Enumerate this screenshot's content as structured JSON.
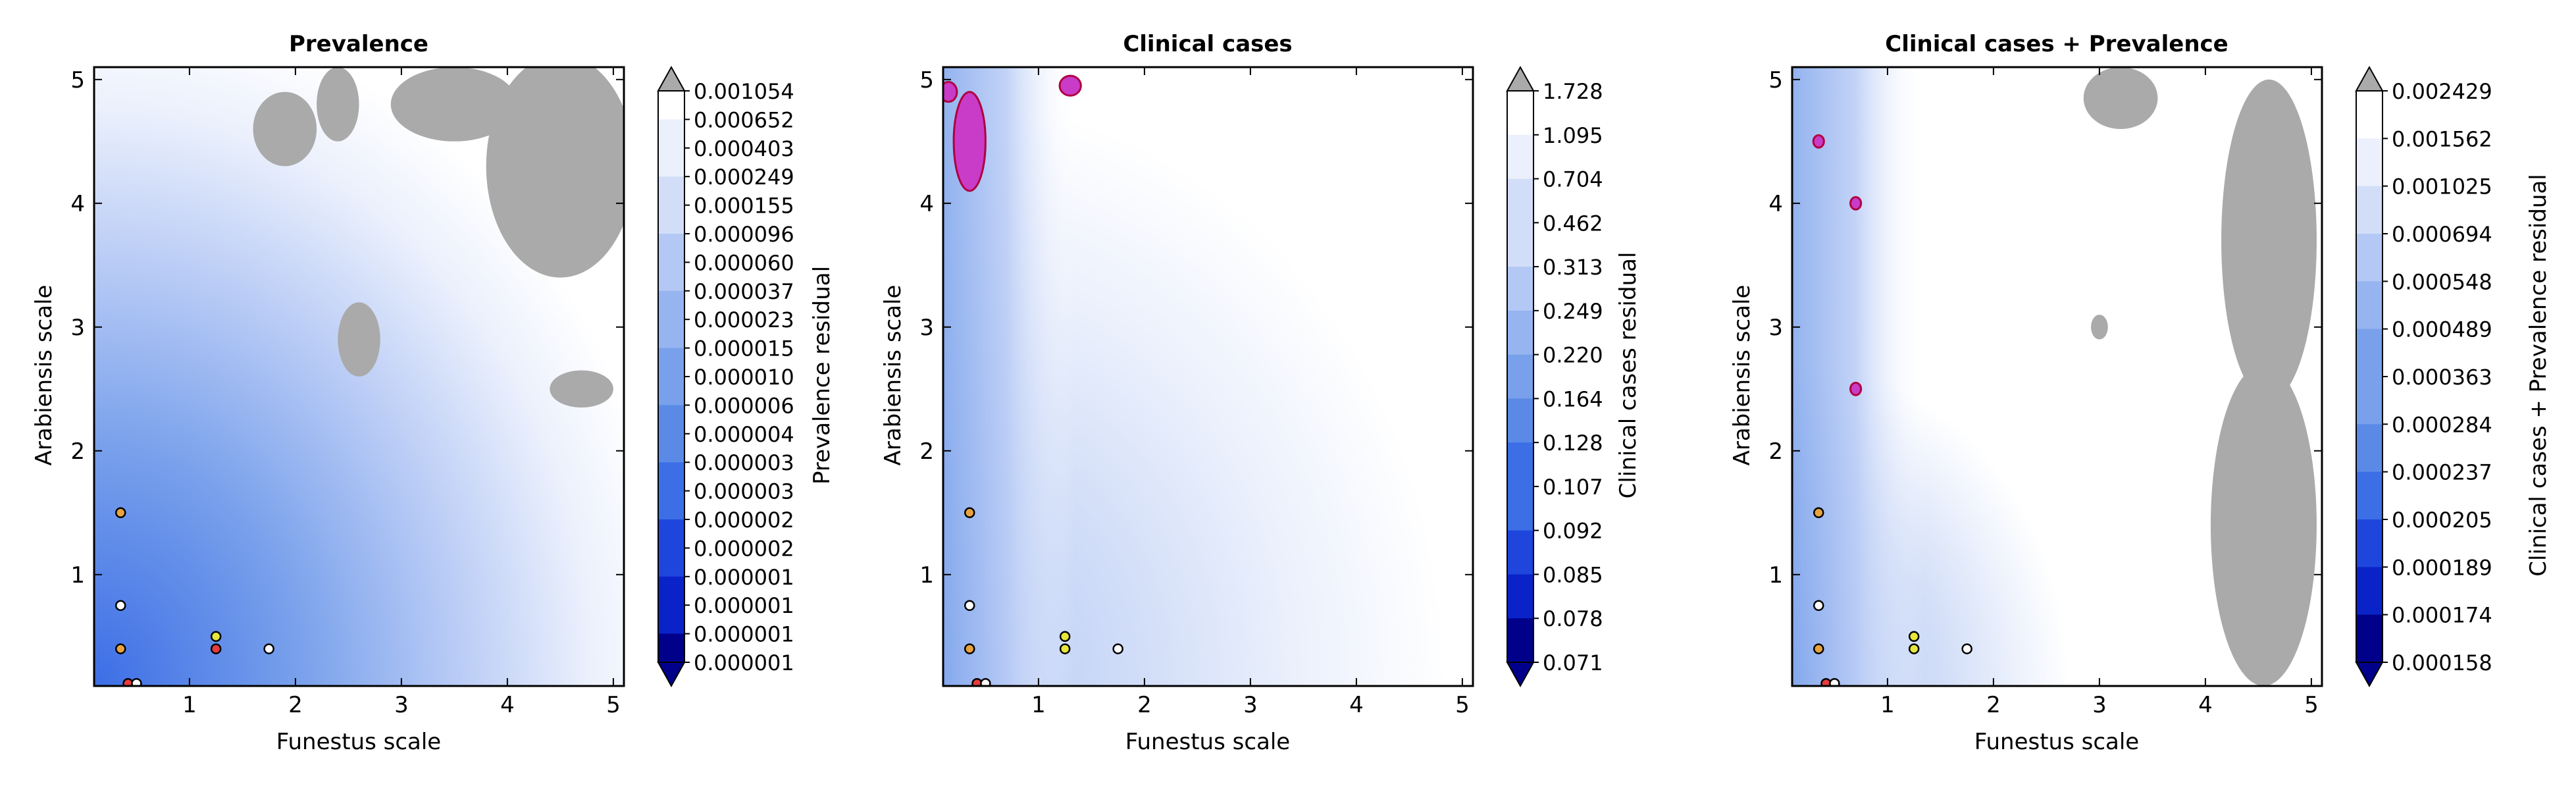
{
  "chart_data": [
    {
      "type": "heatmap",
      "title": "Prevalence",
      "xlabel": "Funestus scale",
      "ylabel": "Arabiensis scale",
      "xticks": [
        "1",
        "2",
        "3",
        "4",
        "5"
      ],
      "yticks": [
        "1",
        "2",
        "3",
        "4",
        "5"
      ],
      "xlim": [
        0.1,
        5.1
      ],
      "ylim": [
        0.1,
        5.1
      ],
      "colorbar_label": "Prevalence residual",
      "colorbar_ticks": [
        "0.001054",
        "0.000652",
        "0.000403",
        "0.000249",
        "0.000155",
        "0.000096",
        "0.000060",
        "0.000037",
        "0.000023",
        "0.000015",
        "0.000010",
        "0.000006",
        "0.000004",
        "0.000003",
        "0.000003",
        "0.000002",
        "0.000002",
        "0.000001",
        "0.000001",
        "0.000001",
        "0.000001"
      ],
      "grey_regions": [
        {
          "x": 2.4,
          "y": 4.8,
          "rx": 0.2,
          "ry": 0.3
        },
        {
          "x": 3.5,
          "y": 4.8,
          "rx": 0.6,
          "ry": 0.3
        },
        {
          "x": 1.9,
          "y": 4.6,
          "rx": 0.3,
          "ry": 0.3
        },
        {
          "x": 4.5,
          "y": 4.3,
          "rx": 0.7,
          "ry": 0.9
        },
        {
          "x": 2.6,
          "y": 2.9,
          "rx": 0.2,
          "ry": 0.3
        },
        {
          "x": 4.7,
          "y": 2.5,
          "rx": 0.3,
          "ry": 0.15
        }
      ],
      "markers": [
        {
          "x": 0.35,
          "y": 1.5,
          "color": "#e8a33d"
        },
        {
          "x": 0.35,
          "y": 0.75,
          "color": "#ffffff"
        },
        {
          "x": 0.35,
          "y": 0.4,
          "color": "#e8a33d"
        },
        {
          "x": 1.25,
          "y": 0.5,
          "color": "#e6e63c"
        },
        {
          "x": 1.25,
          "y": 0.4,
          "color": "#e63c3c"
        },
        {
          "x": 1.75,
          "y": 0.4,
          "color": "#ffffff"
        },
        {
          "x": 0.42,
          "y": 0.12,
          "color": "#e63c3c"
        },
        {
          "x": 0.5,
          "y": 0.12,
          "color": "#ffffff"
        }
      ]
    },
    {
      "type": "heatmap",
      "title": "Clinical cases",
      "xlabel": "Funestus scale",
      "ylabel": "Arabiensis scale",
      "xticks": [
        "1",
        "2",
        "3",
        "4",
        "5"
      ],
      "yticks": [
        "1",
        "2",
        "3",
        "4",
        "5"
      ],
      "xlim": [
        0.1,
        5.1
      ],
      "ylim": [
        0.1,
        5.1
      ],
      "colorbar_label": "Clinical cases residual",
      "colorbar_ticks": [
        "1.728",
        "1.095",
        "0.704",
        "0.462",
        "0.313",
        "0.249",
        "0.220",
        "0.164",
        "0.128",
        "0.107",
        "0.092",
        "0.085",
        "0.078",
        "0.071"
      ],
      "grey_regions": [],
      "magenta_regions": [
        {
          "x": 0.35,
          "y": 4.5,
          "rx": 0.15,
          "ry": 0.4
        },
        {
          "x": 1.3,
          "y": 4.95,
          "rx": 0.1,
          "ry": 0.08
        },
        {
          "x": 0.15,
          "y": 4.9,
          "rx": 0.08,
          "ry": 0.08
        }
      ],
      "markers": [
        {
          "x": 0.35,
          "y": 1.5,
          "color": "#e8a33d"
        },
        {
          "x": 0.35,
          "y": 0.75,
          "color": "#ffffff"
        },
        {
          "x": 0.35,
          "y": 0.4,
          "color": "#e8a33d"
        },
        {
          "x": 1.25,
          "y": 0.5,
          "color": "#e6e63c"
        },
        {
          "x": 1.25,
          "y": 0.4,
          "color": "#e6e63c"
        },
        {
          "x": 1.75,
          "y": 0.4,
          "color": "#ffffff"
        },
        {
          "x": 0.42,
          "y": 0.12,
          "color": "#e63c3c"
        },
        {
          "x": 0.5,
          "y": 0.12,
          "color": "#ffffff"
        }
      ]
    },
    {
      "type": "heatmap",
      "title": "Clinical cases + Prevalence",
      "xlabel": "Funestus scale",
      "ylabel": "Arabiensis scale",
      "xticks": [
        "1",
        "2",
        "3",
        "4",
        "5"
      ],
      "yticks": [
        "1",
        "2",
        "3",
        "4",
        "5"
      ],
      "xlim": [
        0.1,
        5.1
      ],
      "ylim": [
        0.1,
        5.1
      ],
      "colorbar_label": "Clinical cases + Prevalence residual",
      "colorbar_ticks": [
        "0.002429",
        "0.001562",
        "0.001025",
        "0.000694",
        "0.000548",
        "0.000489",
        "0.000363",
        "0.000284",
        "0.000237",
        "0.000205",
        "0.000189",
        "0.000174",
        "0.000158"
      ],
      "grey_regions": [
        {
          "x": 3.2,
          "y": 4.85,
          "rx": 0.35,
          "ry": 0.25
        },
        {
          "x": 4.6,
          "y": 3.7,
          "rx": 0.45,
          "ry": 1.3
        },
        {
          "x": 4.55,
          "y": 1.4,
          "rx": 0.5,
          "ry": 1.3
        },
        {
          "x": 3.0,
          "y": 3.0,
          "rx": 0.08,
          "ry": 0.1
        }
      ],
      "magenta_regions": [
        {
          "x": 0.35,
          "y": 4.5,
          "rx": 0.05,
          "ry": 0.05
        },
        {
          "x": 0.7,
          "y": 4.0,
          "rx": 0.05,
          "ry": 0.05
        },
        {
          "x": 0.7,
          "y": 2.5,
          "rx": 0.05,
          "ry": 0.05
        }
      ],
      "markers": [
        {
          "x": 0.35,
          "y": 1.5,
          "color": "#e8a33d"
        },
        {
          "x": 0.35,
          "y": 0.75,
          "color": "#ffffff"
        },
        {
          "x": 0.35,
          "y": 0.4,
          "color": "#e8a33d"
        },
        {
          "x": 1.25,
          "y": 0.5,
          "color": "#e6e63c"
        },
        {
          "x": 1.25,
          "y": 0.4,
          "color": "#e6e63c"
        },
        {
          "x": 1.75,
          "y": 0.4,
          "color": "#ffffff"
        },
        {
          "x": 0.42,
          "y": 0.12,
          "color": "#e63c3c"
        },
        {
          "x": 0.5,
          "y": 0.12,
          "color": "#ffffff"
        }
      ]
    }
  ],
  "colors": {
    "colormap": [
      "#00008b",
      "#0a23c8",
      "#1e46dc",
      "#3c6ee6",
      "#5a8ae6",
      "#78a0eb",
      "#96b4f0",
      "#b4c8f5",
      "#d2def8",
      "#ebf0fc",
      "#ffffff"
    ],
    "over": "#aaaaaa",
    "under": "#00008b",
    "grey": "#aaaaaa",
    "magenta": "#c83cc8",
    "axis": "#000000"
  }
}
